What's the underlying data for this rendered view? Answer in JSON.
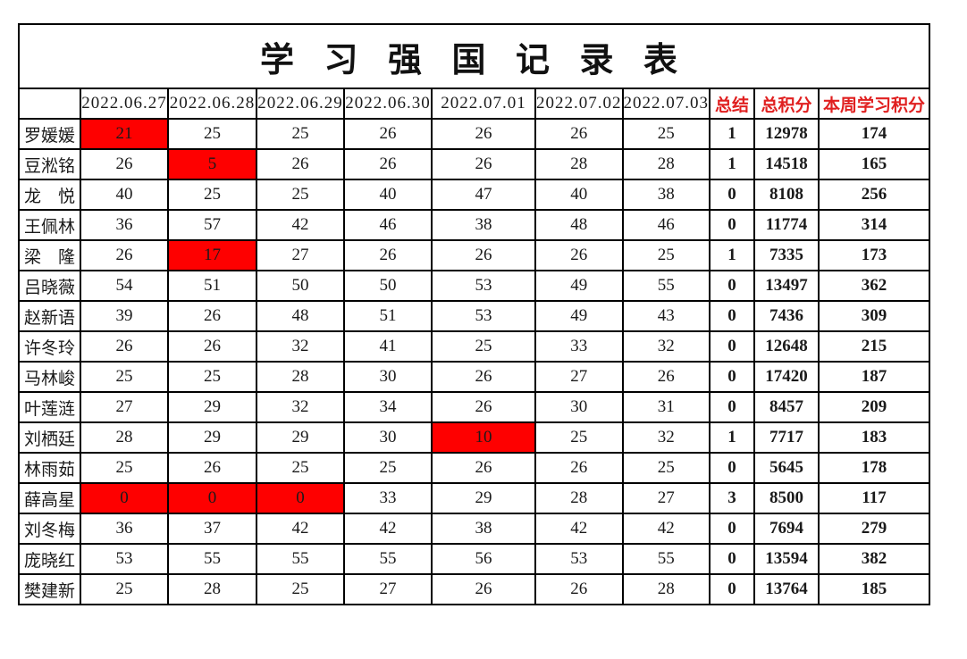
{
  "title": "学 习 强 国 记 录 表",
  "colors": {
    "highlight_bg": "#fe0000",
    "highlight_text": "#ffff00",
    "accent_red": "#e02020",
    "grid_line": "#000000",
    "body_text": "#1a1a1a",
    "background": "#ffffff"
  },
  "header": {
    "corner": "",
    "dates": [
      "2022.06.27",
      "2022.06.28",
      "2022.06.29",
      "2022.06.30",
      "2022.07.01",
      "2022.07.02",
      "2022.07.03"
    ],
    "summary_cols": [
      "总结",
      "总积分",
      "本周学习积分"
    ]
  },
  "rows": [
    {
      "name": "罗媛媛",
      "daily": [
        21,
        25,
        25,
        26,
        26,
        26,
        25
      ],
      "highlight": [
        0
      ],
      "summary": 1,
      "total": 12978,
      "week": 174
    },
    {
      "name": "豆淞铭",
      "daily": [
        26,
        5,
        26,
        26,
        26,
        28,
        28
      ],
      "highlight": [
        1
      ],
      "summary": 1,
      "total": 14518,
      "week": 165
    },
    {
      "name": "龙　悦",
      "daily": [
        40,
        25,
        25,
        40,
        47,
        40,
        38
      ],
      "highlight": [],
      "summary": 0,
      "total": 8108,
      "week": 256
    },
    {
      "name": "王佩林",
      "daily": [
        36,
        57,
        42,
        46,
        38,
        48,
        46
      ],
      "highlight": [],
      "summary": 0,
      "total": 11774,
      "week": 314
    },
    {
      "name": "梁　隆",
      "daily": [
        26,
        17,
        27,
        26,
        26,
        26,
        25
      ],
      "highlight": [
        1
      ],
      "summary": 1,
      "total": 7335,
      "week": 173
    },
    {
      "name": "吕晓薇",
      "daily": [
        54,
        51,
        50,
        50,
        53,
        49,
        55
      ],
      "highlight": [],
      "summary": 0,
      "total": 13497,
      "week": 362
    },
    {
      "name": "赵新语",
      "daily": [
        39,
        26,
        48,
        51,
        53,
        49,
        43
      ],
      "highlight": [],
      "summary": 0,
      "total": 7436,
      "week": 309
    },
    {
      "name": "许冬玲",
      "daily": [
        26,
        26,
        32,
        41,
        25,
        33,
        32
      ],
      "highlight": [],
      "summary": 0,
      "total": 12648,
      "week": 215
    },
    {
      "name": "马林峻",
      "daily": [
        25,
        25,
        28,
        30,
        26,
        27,
        26
      ],
      "highlight": [],
      "summary": 0,
      "total": 17420,
      "week": 187
    },
    {
      "name": "叶莲涟",
      "daily": [
        27,
        29,
        32,
        34,
        26,
        30,
        31
      ],
      "highlight": [],
      "summary": 0,
      "total": 8457,
      "week": 209
    },
    {
      "name": "刘栖廷",
      "daily": [
        28,
        29,
        29,
        30,
        10,
        25,
        32
      ],
      "highlight": [
        4
      ],
      "summary": 1,
      "total": 7717,
      "week": 183
    },
    {
      "name": "林雨茹",
      "daily": [
        25,
        26,
        25,
        25,
        26,
        26,
        25
      ],
      "highlight": [],
      "summary": 0,
      "total": 5645,
      "week": 178
    },
    {
      "name": "薛高星",
      "daily": [
        0,
        0,
        0,
        33,
        29,
        28,
        27
      ],
      "highlight": [
        0,
        1,
        2
      ],
      "summary": 3,
      "total": 8500,
      "week": 117
    },
    {
      "name": "刘冬梅",
      "daily": [
        36,
        37,
        42,
        42,
        38,
        42,
        42
      ],
      "highlight": [],
      "summary": 0,
      "total": 7694,
      "week": 279
    },
    {
      "name": "庞晓红",
      "daily": [
        53,
        55,
        55,
        55,
        56,
        53,
        55
      ],
      "highlight": [],
      "summary": 0,
      "total": 13594,
      "week": 382
    },
    {
      "name": "樊建新",
      "daily": [
        25,
        28,
        25,
        27,
        26,
        26,
        28
      ],
      "highlight": [],
      "summary": 0,
      "total": 13764,
      "week": 185
    }
  ]
}
